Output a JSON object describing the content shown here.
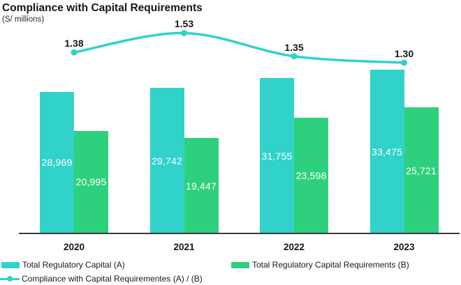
{
  "header": {
    "title": "Compliance with Capital Requirements",
    "subtitle": "(S/ millions)"
  },
  "chart_data": {
    "type": "bar",
    "subtype": "grouped bars with overlaid line series",
    "categories": [
      "2020",
      "2021",
      "2022",
      "2023"
    ],
    "series": [
      {
        "name": "Total Regulatory Capital (A)",
        "type": "bar",
        "color": "#31D2CA",
        "values": [
          28969,
          29742,
          31755,
          33475
        ],
        "labels": [
          "28,969",
          "29,742",
          "31,755",
          "33,475"
        ]
      },
      {
        "name": "Total Regulatory Capital Requirements (B)",
        "type": "bar",
        "color": "#2DD17D",
        "values": [
          20995,
          19447,
          23598,
          25721
        ],
        "labels": [
          "20,995",
          "19,447",
          "23,598",
          "25,721"
        ]
      },
      {
        "name": "Compliance with Capital Requirementes (A) / (B)",
        "type": "line",
        "color": "#31D2CA",
        "values": [
          1.38,
          1.53,
          1.35,
          1.3
        ],
        "labels": [
          "1.38",
          "1.53",
          "1.35",
          "1.30"
        ]
      }
    ],
    "ylim": [
      0,
      33475
    ],
    "grid": false,
    "legend_position": "bottom",
    "axis_color": "#3a3a3a",
    "bar_label_color": "#ffffff"
  }
}
